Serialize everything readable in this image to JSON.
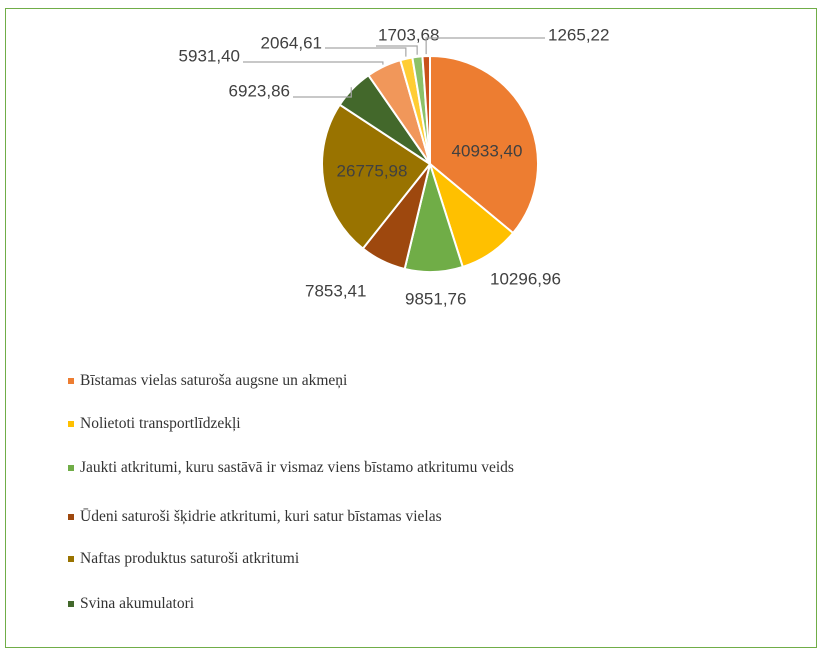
{
  "chart_data": {
    "type": "pie",
    "categories": [
      "Bīstamas vielas saturoša augsne un akmeņi",
      "Nolietoti transportlīdzekļi",
      "Jaukti atkritumi, kuru sastāvā ir vismaz viens bīstamo atkritumu veids",
      "Ūdeni saturoši šķidrie atkritumi, kuri satur bīstamas vielas",
      "Naftas produktus saturoši atkritumi",
      "Svina akumulatori",
      null,
      null,
      null,
      null
    ],
    "values": [
      40933.4,
      10296.96,
      9851.76,
      7853.41,
      26775.98,
      6923.86,
      5931.4,
      2064.61,
      1703.68,
      1265.22
    ],
    "value_labels": [
      "40933,40",
      "10296,96",
      "9851,76",
      "7853,41",
      "26775,98",
      "6923,86",
      "5931,40",
      "2064,61",
      "1703,68",
      "1265,22"
    ],
    "colors": [
      "#ed7d31",
      "#ffc000",
      "#70ad47",
      "#9e480e",
      "#997300",
      "#43682b",
      "#f1975a",
      "#ffcd33",
      "#8cc168",
      "#c9521b"
    ],
    "legend": "bottom"
  }
}
